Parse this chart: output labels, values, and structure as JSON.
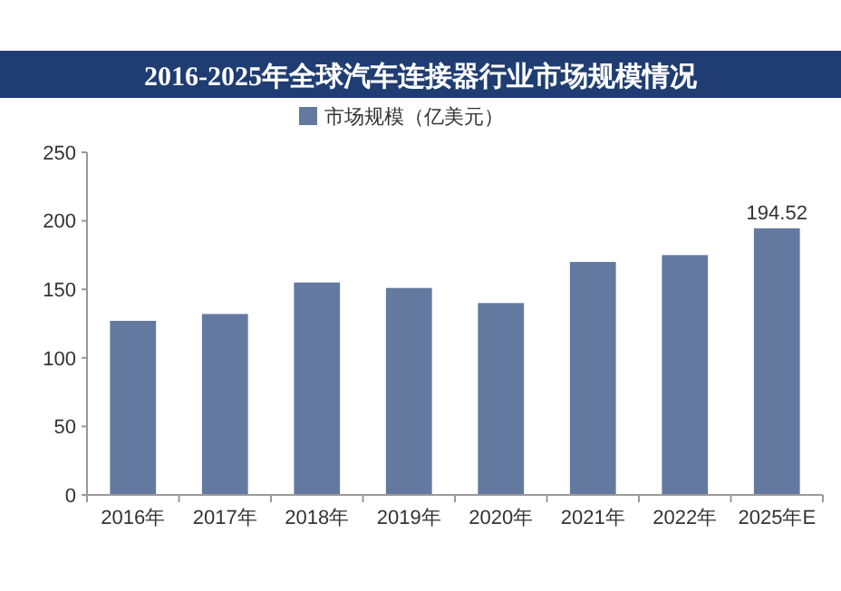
{
  "chart_data": {
    "type": "bar",
    "title": "2016-2025年全球汽车连接器行业市场规模情况",
    "categories": [
      "2016年",
      "2017年",
      "2018年",
      "2019年",
      "2020年",
      "2021年",
      "2022年",
      "2025年E"
    ],
    "series": [
      {
        "name": "市场规模（亿美元）",
        "color": "#64799f",
        "values": [
          127,
          132,
          155,
          151,
          140,
          170,
          175,
          194.52
        ],
        "value_labels": [
          null,
          null,
          null,
          null,
          null,
          null,
          null,
          "194.52"
        ]
      }
    ],
    "ylim": [
      0,
      250
    ],
    "yticks": [
      0,
      50,
      100,
      150,
      200,
      250
    ],
    "grid": false,
    "legend": "top"
  }
}
